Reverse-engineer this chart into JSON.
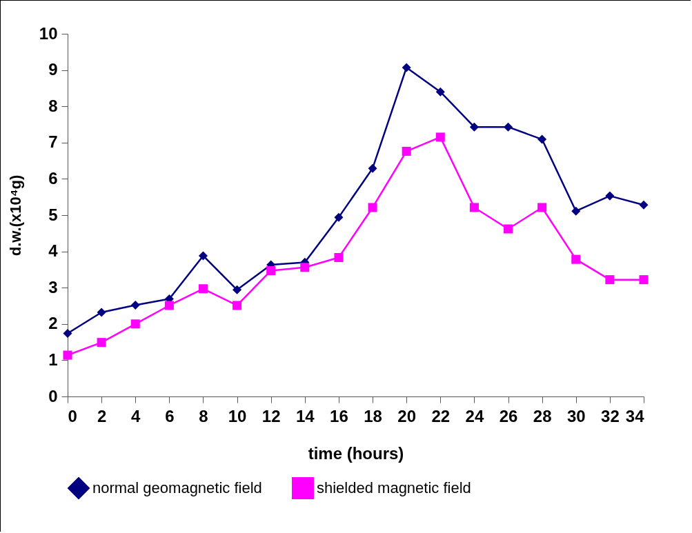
{
  "chart_data": {
    "type": "line",
    "xlabel": "time (hours)",
    "ylabel": "d.w.(x10⁴g)",
    "x": [
      0,
      2,
      4,
      6,
      8,
      10,
      12,
      14,
      16,
      18,
      20,
      22,
      24,
      26,
      28,
      30,
      32,
      34
    ],
    "xlim": [
      0,
      34
    ],
    "xticks": [
      0,
      2,
      4,
      6,
      8,
      10,
      12,
      14,
      16,
      18,
      20,
      22,
      24,
      26,
      28,
      30,
      32,
      34
    ],
    "ylim": [
      0,
      10
    ],
    "yticks": [
      0,
      1,
      2,
      3,
      4,
      5,
      6,
      7,
      8,
      9,
      10
    ],
    "grid": false,
    "legend": "bottom",
    "series": [
      {
        "name": "normal geomagnetic field",
        "color": "#000080",
        "marker": "diamond",
        "values": [
          1.74,
          2.32,
          2.52,
          2.69,
          3.88,
          2.94,
          3.63,
          3.7,
          4.94,
          6.29,
          9.07,
          8.4,
          7.43,
          7.43,
          7.09,
          5.11,
          5.53,
          5.28
        ]
      },
      {
        "name": "shielded magnetic field",
        "color": "#ff00ff",
        "marker": "square",
        "values": [
          1.14,
          1.49,
          2.0,
          2.51,
          2.97,
          2.51,
          3.47,
          3.56,
          3.83,
          5.21,
          6.76,
          7.15,
          5.21,
          4.62,
          5.21,
          3.78,
          3.22,
          3.22
        ]
      }
    ]
  }
}
